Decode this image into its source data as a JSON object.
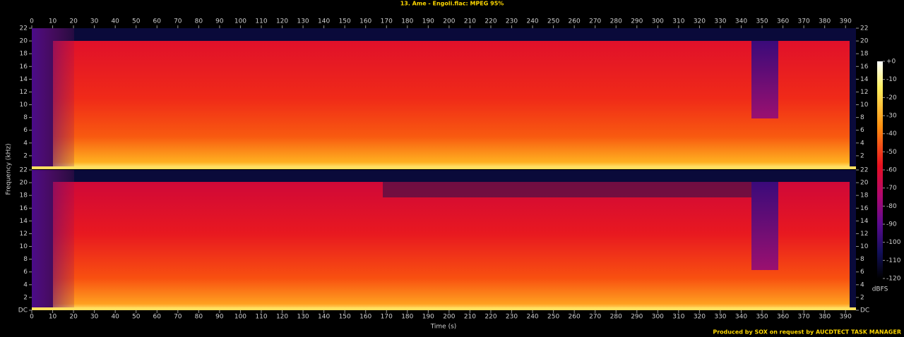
{
  "chart_data": [
    {
      "type": "spectrogram",
      "title": "13. Ame - Engoli.flac: MPEG 95%",
      "ylabel": "Frequency (kHz)",
      "xlim": [
        0,
        395
      ],
      "xticks": [
        0,
        10,
        20,
        30,
        40,
        50,
        60,
        70,
        80,
        90,
        100,
        110,
        120,
        130,
        140,
        150,
        160,
        170,
        180,
        190,
        200,
        210,
        220,
        230,
        240,
        250,
        260,
        270,
        280,
        290,
        300,
        310,
        320,
        330,
        340,
        350,
        360,
        370,
        380,
        390
      ],
      "ylim": [
        0,
        22
      ],
      "yticks": [
        2,
        4,
        6,
        8,
        10,
        12,
        14,
        16,
        18,
        20,
        22
      ]
    },
    {
      "type": "spectrogram",
      "xlabel": "Time (s)",
      "xlim": [
        0,
        395
      ],
      "xticks": [
        0,
        10,
        20,
        30,
        40,
        50,
        60,
        70,
        80,
        90,
        100,
        110,
        120,
        130,
        140,
        150,
        160,
        170,
        180,
        190,
        200,
        210,
        220,
        230,
        240,
        250,
        260,
        270,
        280,
        290,
        300,
        310,
        320,
        330,
        340,
        350,
        360,
        370,
        380,
        390
      ],
      "ylim": [
        0,
        22
      ],
      "yticks": [
        {
          "value": 0,
          "label": "DC"
        },
        2,
        4,
        6,
        8,
        10,
        12,
        14,
        16,
        18,
        20,
        22
      ]
    }
  ],
  "colorbar": {
    "label": "dBFS",
    "lim": [
      -120,
      0
    ],
    "ticks": [
      {
        "value": 0,
        "label": "+0"
      },
      -10,
      -20,
      -30,
      -40,
      -50,
      -60,
      -70,
      -80,
      -90,
      -100,
      -110,
      -120
    ]
  },
  "footer": "Produced by SOX on request by AUCDTECT TASK MANAGER"
}
